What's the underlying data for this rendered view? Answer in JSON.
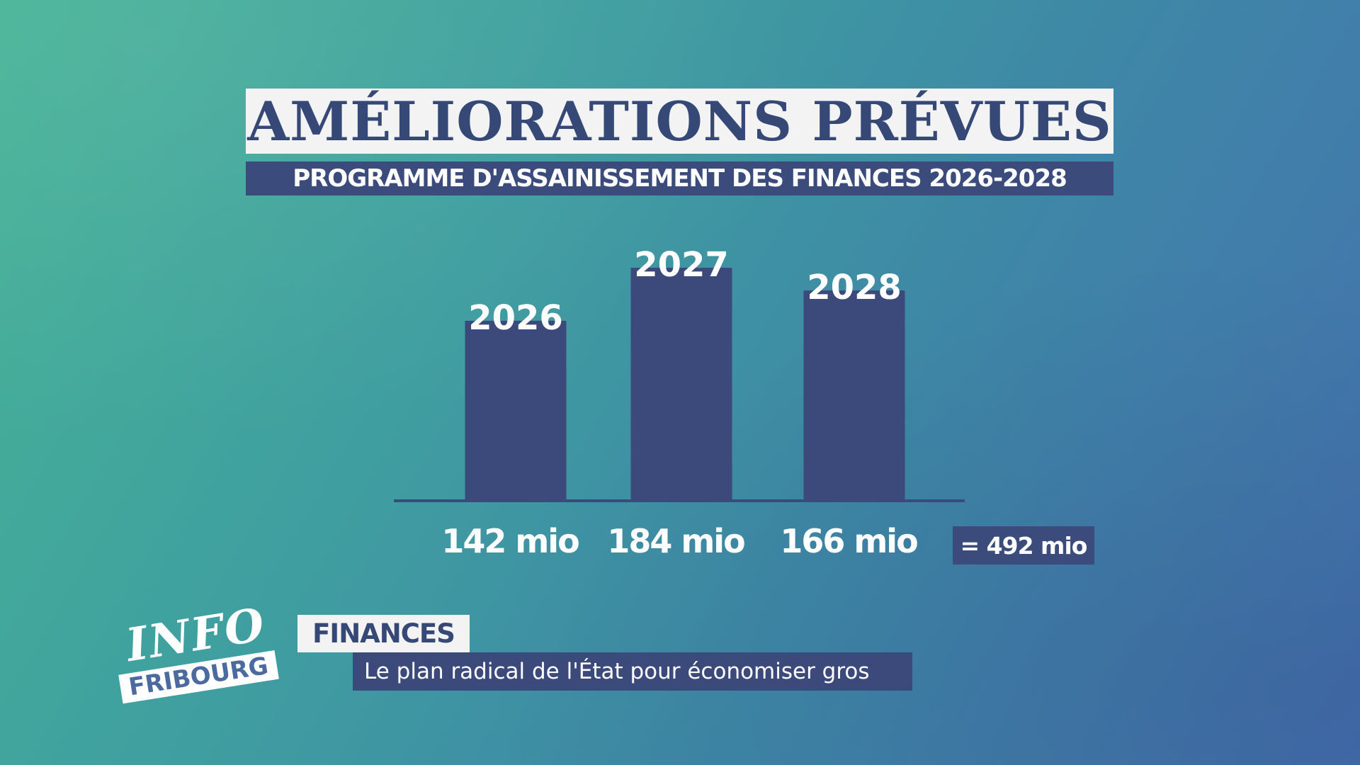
{
  "header": {
    "title": "AMÉLIORATIONS PRÉVUES",
    "subtitle": "PROGRAMME D'ASSAINISSEMENT DES FINANCES 2026-2028"
  },
  "chart_data": {
    "type": "bar",
    "title": "AMÉLIORATIONS PRÉVUES",
    "subtitle": "PROGRAMME D'ASSAINISSEMENT DES FINANCES 2026-2028",
    "categories": [
      "2026",
      "2027",
      "2028"
    ],
    "values": [
      142,
      184,
      166
    ],
    "value_labels": [
      "142 mio",
      "184 mio",
      "166 mio"
    ],
    "total_label": "= 492 mio",
    "ylim": [
      0,
      184
    ],
    "grid": false,
    "bar_color": "#3b4a7b",
    "axis_color": "#3b4a7b",
    "label_color": "#ffffff"
  },
  "lower_third": {
    "logo_top": "INFO",
    "logo_bottom": "FRIBOURG",
    "tag": "FINANCES",
    "headline": "Le plan radical de l'État pour économiser gros"
  },
  "colors": {
    "accent_dark": "#3b4a7b",
    "panel_light": "#f2f3f2",
    "bg_start": "#46b396",
    "bg_end": "#4570b0"
  }
}
